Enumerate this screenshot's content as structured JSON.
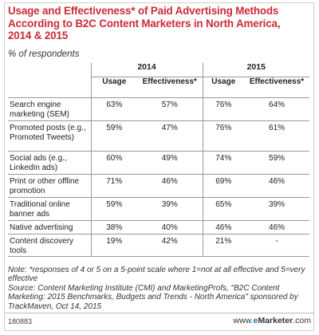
{
  "chart_data": {
    "type": "table",
    "title": "Usage and Effectiveness* of Paid Advertising Methods According to B2C Content Marketers in North America, 2014 & 2015",
    "subtitle": "% of respondents",
    "years": [
      "2014",
      "2015"
    ],
    "columns": [
      "Usage",
      "Effectiveness*",
      "Usage",
      "Effectiveness*"
    ],
    "rows": [
      {
        "label": "Search engine marketing (SEM)",
        "values": [
          "63%",
          "57%",
          "76%",
          "64%"
        ]
      },
      {
        "label": "Promoted posts (e.g., Promoted Tweets)",
        "values": [
          "59%",
          "47%",
          "76%",
          "61%"
        ]
      },
      {
        "label": "Social ads (e.g., LinkedIn ads)",
        "values": [
          "60%",
          "49%",
          "74%",
          "59%"
        ]
      },
      {
        "label": "Print or other offline promotion",
        "values": [
          "71%",
          "46%",
          "69%",
          "46%"
        ]
      },
      {
        "label": "Traditional online banner ads",
        "values": [
          "59%",
          "39%",
          "65%",
          "39%"
        ]
      },
      {
        "label": "Native advertising",
        "values": [
          "38%",
          "40%",
          "46%",
          "46%"
        ]
      },
      {
        "label": "Content discovery tools",
        "values": [
          "19%",
          "42%",
          "21%",
          "-"
        ]
      }
    ],
    "note": "Note: *responses of 4 or 5 on a 5-point scale where 1=not at all effective and 5=very effective",
    "source": "Source: Content Marketing Institute (CMI) and MarketingProfs, \"B2C Content Marketing: 2015 Benchmarks, Budgets and Trends - North America\" sponsored by TrackMaven, Oct 14, 2015",
    "chart_id": "180883"
  },
  "brand": {
    "www": "www.",
    "e": "e",
    "marketer": "Marketer",
    "com": ".com"
  },
  "colors": {
    "title": "#cc2a36",
    "brand_e": "#1a73b8",
    "rule": "#999999"
  }
}
